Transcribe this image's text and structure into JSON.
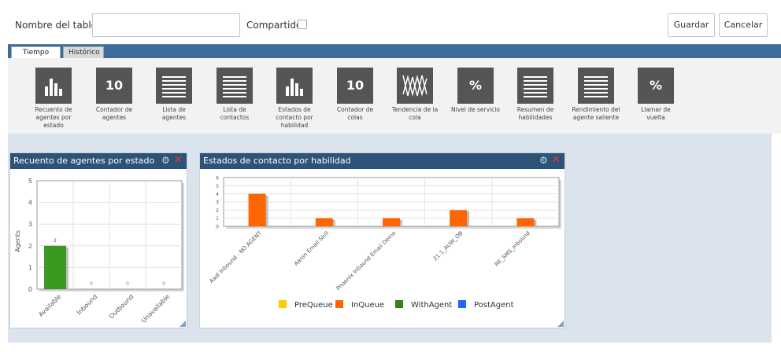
{
  "header": {
    "name_label": "Nombre del tablero",
    "name_value": "",
    "shared_label": "Compartido",
    "save_label": "Guardar",
    "cancel_label": "Cancelar"
  },
  "tabs": [
    {
      "label": "Tiempo real",
      "active": true
    },
    {
      "label": "Histórico",
      "active": false
    }
  ],
  "widgets": [
    {
      "label": "Recuento de agentes por estado",
      "icon": "bar-chart-icon"
    },
    {
      "label": "Contador de agentes",
      "icon": "counter-icon",
      "glyph": "10"
    },
    {
      "label": "Lista de agentes",
      "icon": "list-icon"
    },
    {
      "label": "Lista de contactos",
      "icon": "list-icon"
    },
    {
      "label": "Estados de contacto por habilidad",
      "icon": "bar-chart-icon"
    },
    {
      "label": "Contador de colas",
      "icon": "counter-icon",
      "glyph": "10"
    },
    {
      "label": "Tendencia de la cola",
      "icon": "trend-icon"
    },
    {
      "label": "Nivel de servicio",
      "icon": "percent-icon",
      "glyph": "%"
    },
    {
      "label": "Resumen de habilidades",
      "icon": "list-icon"
    },
    {
      "label": "Rendimiento del agente saliente",
      "icon": "list-icon"
    },
    {
      "label": "Llamar de vuelta",
      "icon": "percent-icon",
      "glyph": "%"
    }
  ],
  "panel1": {
    "title": "Recuento de agentes por estado"
  },
  "panel2": {
    "title": "Estados de contacto por habilidad"
  },
  "colors": {
    "header_blue": "#2d5379",
    "tab_blue": "#3f6d9a",
    "green": "#3a9a1f",
    "orange": "#ff6600",
    "yellow": "#ffcc00",
    "blue": "#1a66ff",
    "dark_green": "#3a7d1f"
  },
  "chart_data": [
    {
      "type": "bar",
      "title": "Recuento de agentes por estado",
      "ylabel": "Agents",
      "categories": [
        "Available",
        "Inbound",
        "Outbound",
        "Unavailable"
      ],
      "values": [
        2,
        0,
        0,
        0
      ],
      "ylim": [
        0,
        5
      ],
      "yticks": [
        "0",
        "1",
        "2",
        "3",
        "4",
        "5"
      ],
      "data_labels": [
        "2",
        "0",
        "0",
        "0"
      ],
      "grid": true
    },
    {
      "type": "bar",
      "title": "Estados de contacto por habilidad",
      "categories": [
        "Aadl Inbound - NO AGENT",
        "Aaron Email Skill",
        "Phoenix Inbound Email Demo",
        "21.1_AUW_OB",
        "RE_SMS_Inbound"
      ],
      "series": [
        {
          "name": "PreQueue",
          "values": [
            0,
            0,
            0,
            0,
            0
          ]
        },
        {
          "name": "InQueue",
          "values": [
            4,
            1,
            1,
            2,
            1
          ]
        },
        {
          "name": "WithAgent",
          "values": [
            0,
            0,
            0,
            0,
            0
          ]
        },
        {
          "name": "PostAgent",
          "values": [
            0,
            0,
            0,
            0,
            0
          ]
        }
      ],
      "ylim": [
        0,
        6
      ],
      "yticks": [
        "0",
        "1",
        "2",
        "3",
        "4",
        "5",
        "6"
      ],
      "legend_position": "bottom",
      "grid": true
    }
  ]
}
